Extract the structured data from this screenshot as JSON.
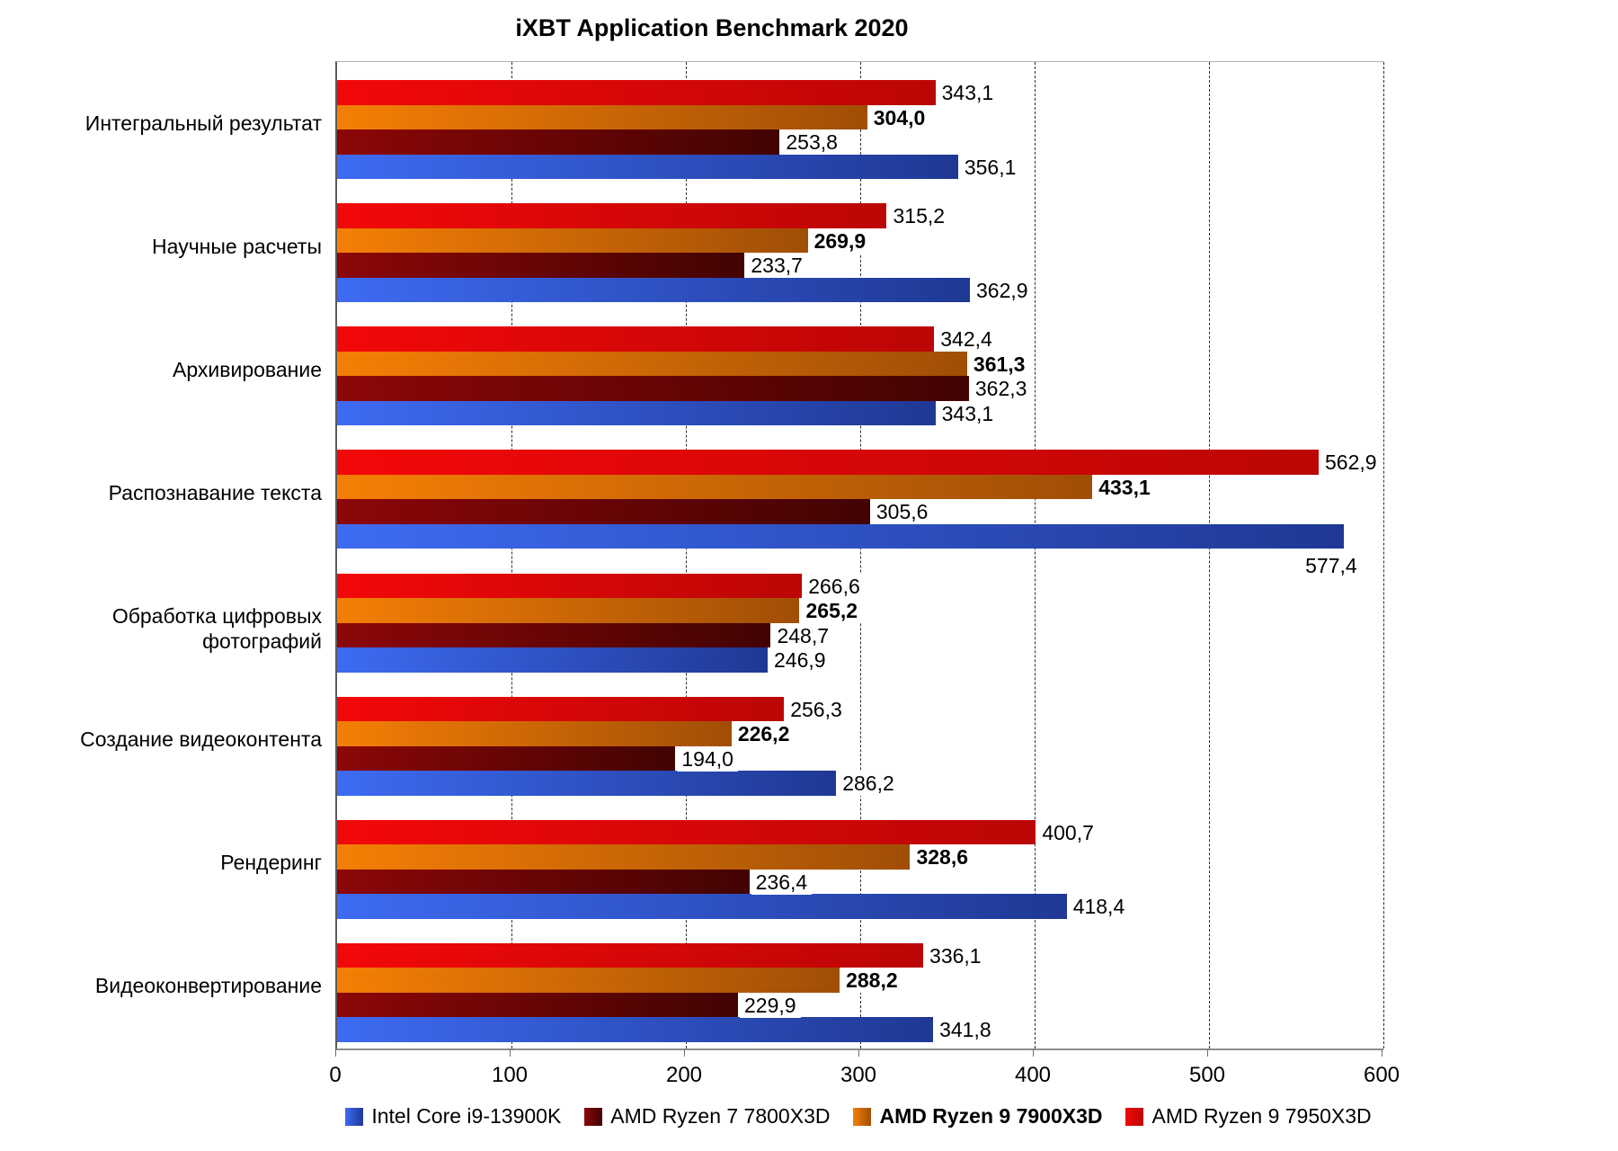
{
  "title": "iXBT Application Benchmark 2020",
  "chart_data": {
    "type": "bar",
    "orientation": "horizontal",
    "title": "iXBT Application Benchmark 2020",
    "categories": [
      "Интегральный результат",
      "Научные расчеты",
      "Архивирование",
      "Распознавание текста",
      "Обработка цифровых фотографий",
      "Создание видеоконтента",
      "Рендеринг",
      "Видеоконвертирование"
    ],
    "series": [
      {
        "name": "Intel Core i9-13900K",
        "values": [
          356.1,
          362.9,
          343.1,
          577.4,
          246.9,
          286.2,
          418.4,
          341.8
        ],
        "color_start": "#3E6BF2",
        "color_end": "#1F3894",
        "bold": false
      },
      {
        "name": "AMD Ryzen 7 7800X3D",
        "values": [
          253.8,
          233.7,
          362.3,
          305.6,
          248.7,
          194.0,
          236.4,
          229.9
        ],
        "color_start": "#8C0707",
        "color_end": "#420303",
        "bold": false
      },
      {
        "name": "AMD Ryzen 9 7900X3D",
        "values": [
          304.0,
          269.9,
          361.3,
          433.1,
          265.2,
          226.2,
          328.6,
          288.2
        ],
        "color_start": "#F57F05",
        "color_end": "#A04E06",
        "bold": true
      },
      {
        "name": "AMD Ryzen 9 7950X3D",
        "values": [
          343.1,
          315.2,
          342.4,
          562.9,
          266.6,
          256.3,
          400.7,
          336.1
        ],
        "color_start": "#F30808",
        "color_end": "#BB0606",
        "bold": false
      }
    ],
    "display_order_top_to_bottom": [
      "AMD Ryzen 9 7950X3D",
      "AMD Ryzen 9 7900X3D",
      "AMD Ryzen 7 7800X3D",
      "Intel Core i9-13900K"
    ],
    "xlim": [
      0,
      600
    ],
    "xticks": [
      0,
      100,
      200,
      300,
      400,
      500,
      600
    ],
    "grid": "vertical-dashed",
    "legend_position": "bottom",
    "decimal_separator": ","
  }
}
